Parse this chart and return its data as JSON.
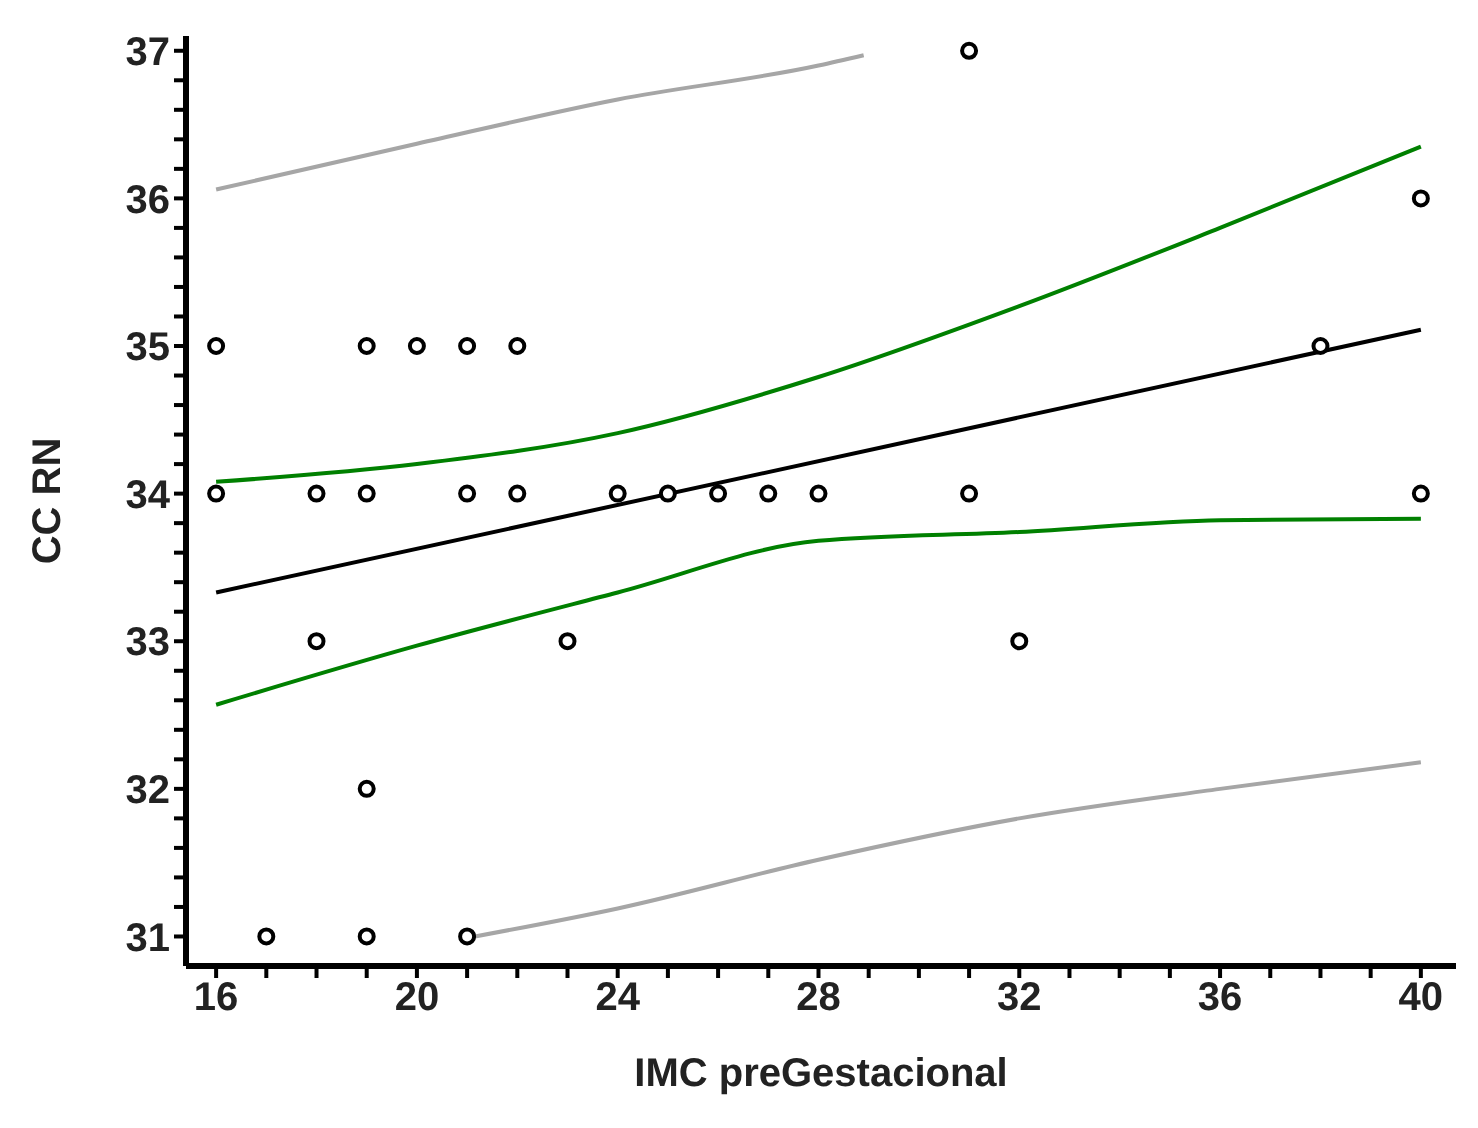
{
  "chart_data": {
    "type": "scatter",
    "xlabel": "IMC preGestacional",
    "ylabel": "CC RN",
    "xlim": [
      15.4,
      40.7
    ],
    "ylim": [
      30.8,
      37.1
    ],
    "xticks": [
      16,
      {
        "value": 17,
        "label": null
      },
      {
        "value": 18,
        "label": null
      },
      {
        "value": 19,
        "label": null
      },
      20,
      {
        "value": 21,
        "label": null
      },
      {
        "value": 22,
        "label": null
      },
      {
        "value": 23,
        "label": null
      },
      24,
      {
        "value": 25,
        "label": null
      },
      {
        "value": 26,
        "label": null
      },
      {
        "value": 27,
        "label": null
      },
      28,
      {
        "value": 29,
        "label": null
      },
      {
        "value": 30,
        "label": null
      },
      {
        "value": 31,
        "label": null
      },
      32,
      {
        "value": 33,
        "label": null
      },
      {
        "value": 34,
        "label": null
      },
      {
        "value": 35,
        "label": null
      },
      36,
      {
        "value": 37,
        "label": null
      },
      {
        "value": 38,
        "label": null
      },
      {
        "value": 39,
        "label": null
      },
      40
    ],
    "yticks": [
      31,
      {
        "value": 31.2,
        "label": null
      },
      {
        "value": 31.4,
        "label": null
      },
      {
        "value": 31.6,
        "label": null
      },
      {
        "value": 31.8,
        "label": null
      },
      32,
      {
        "value": 32.2,
        "label": null
      },
      {
        "value": 32.4,
        "label": null
      },
      {
        "value": 32.6,
        "label": null
      },
      {
        "value": 32.8,
        "label": null
      },
      33,
      {
        "value": 33.2,
        "label": null
      },
      {
        "value": 33.4,
        "label": null
      },
      {
        "value": 33.6,
        "label": null
      },
      {
        "value": 33.8,
        "label": null
      },
      34,
      {
        "value": 34.2,
        "label": null
      },
      {
        "value": 34.4,
        "label": null
      },
      {
        "value": 34.6,
        "label": null
      },
      {
        "value": 34.8,
        "label": null
      },
      35,
      {
        "value": 35.2,
        "label": null
      },
      {
        "value": 35.4,
        "label": null
      },
      {
        "value": 35.6,
        "label": null
      },
      {
        "value": 35.8,
        "label": null
      },
      36,
      {
        "value": 36.2,
        "label": null
      },
      {
        "value": 36.4,
        "label": null
      },
      {
        "value": 36.6,
        "label": null
      },
      {
        "value": 36.8,
        "label": null
      },
      37
    ],
    "grid": false,
    "legend": false,
    "marker": "circle",
    "series": [
      {
        "color": "#000000",
        "x": [
          16,
          16,
          17,
          18,
          18,
          19,
          19,
          19,
          19,
          20,
          21,
          21,
          21,
          22,
          22,
          23,
          24,
          25,
          26,
          27,
          28,
          31,
          31,
          32,
          38,
          40,
          40
        ],
        "values": [
          35,
          34,
          31,
          34,
          33,
          35,
          34,
          32,
          31,
          35,
          35,
          34,
          31,
          35,
          34,
          33,
          34,
          34,
          34,
          34,
          34,
          37,
          34,
          33,
          35,
          36,
          34
        ]
      },
      {
        "type": "line",
        "marker": "none",
        "color": "#000000",
        "x": [
          16,
          40
        ],
        "values": [
          33.33,
          35.11
        ]
      },
      {
        "type": "line",
        "marker": "none",
        "color": "#008000",
        "x": [
          16,
          20,
          24,
          28,
          32,
          36,
          40
        ],
        "values": [
          34.08,
          34.2,
          34.41,
          34.79,
          35.27,
          35.8,
          36.35
        ]
      },
      {
        "type": "line",
        "marker": "none",
        "color": "#008000",
        "x": [
          16,
          20,
          24,
          28,
          32,
          36,
          40
        ],
        "values": [
          32.57,
          32.97,
          33.33,
          33.68,
          33.74,
          33.82,
          33.83
        ]
      },
      {
        "type": "line",
        "marker": "none",
        "color": "#a6a6a6",
        "x": [
          16,
          20,
          24,
          28,
          28.9
        ],
        "values": [
          36.06,
          36.37,
          36.67,
          36.9,
          36.97
        ]
      },
      {
        "type": "line",
        "marker": "none",
        "color": "#a6a6a6",
        "x": [
          21,
          24,
          28,
          32,
          36,
          40
        ],
        "values": [
          30.99,
          31.19,
          31.52,
          31.8,
          32.0,
          32.18
        ]
      }
    ]
  }
}
